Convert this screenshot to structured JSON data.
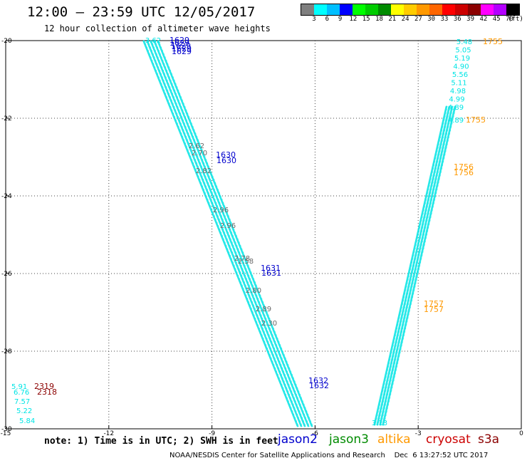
{
  "header": {
    "title": "12:00 – 23:59 UTC 12/05/2017",
    "subtitle": "12 hour collection of altimeter wave heights"
  },
  "colorbar": {
    "colors": [
      "#7f7f7f",
      "#00ffff",
      "#00bfff",
      "#0000ff",
      "#00ff00",
      "#00cc00",
      "#008b00",
      "#ffff00",
      "#ffcc00",
      "#ff9900",
      "#ff6600",
      "#ff0000",
      "#cc0000",
      "#8b0000",
      "#ff00ff",
      "#b400ff",
      "#000000"
    ],
    "ticks": [
      "3",
      "6",
      "9",
      "12",
      "15",
      "18",
      "21",
      "24",
      "27",
      "30",
      "33",
      "36",
      "39",
      "42",
      "45",
      "70"
    ],
    "unit": "(ft)"
  },
  "map": {
    "lon_range": [
      -15,
      0
    ],
    "lat_range": [
      -30,
      -20
    ],
    "x_ticks": [
      "-15",
      "-12",
      "-9",
      "-6",
      "-3",
      "0"
    ],
    "y_ticks": [
      "-20",
      "-22",
      "-24",
      "-26",
      "-28",
      "-30"
    ],
    "grid": true
  },
  "track_labels": {
    "left_track_top": "3.62",
    "left_track_mid": [
      "2.62",
      "2.70",
      "2.82",
      "2.96",
      "2.96",
      "2.78",
      "2.58",
      "2.80",
      "2.89",
      "2.30"
    ],
    "right_track": [
      "5.48",
      "5.05",
      "5.19",
      "4.90",
      "5.56",
      "5.11",
      "4.98",
      "4.99",
      "4.89"
    ],
    "right_bottom": "3.13",
    "left_cluster": [
      "5.91",
      "6.76",
      "7.57",
      "5.22",
      "5.84"
    ]
  },
  "time_labels": {
    "j2_1629": "1629",
    "j2_1630": "1630",
    "j2_1631": "1631",
    "j2_1632": "1632",
    "al_1755": "1755",
    "al_1756": "1756",
    "al_1757": "1757",
    "s3a_2318": "2318",
    "s3a_2319": "2319"
  },
  "note": "note: 1) Time is in UTC; 2) SWH is in feet",
  "legend": [
    {
      "name": "jason2",
      "color": "#0000cd"
    },
    {
      "name": "jason3",
      "color": "#008b00"
    },
    {
      "name": "altika",
      "color": "#ff9900"
    },
    {
      "name": "cryosat",
      "color": "#cc0000"
    },
    {
      "name": "s3a",
      "color": "#8b0000"
    }
  ],
  "footer": "NOAA/NESDIS Center for Satellite Applications and Research    Dec  6 13:27:52 UTC 2017"
}
